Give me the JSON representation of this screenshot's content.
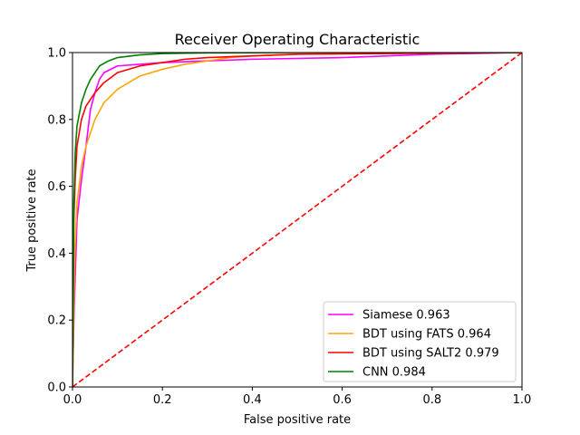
{
  "chart_data": {
    "type": "line",
    "title": "Receiver Operating Characteristic",
    "xlabel": "False positive rate",
    "ylabel": "True positive rate",
    "xlim": [
      0,
      1
    ],
    "ylim": [
      0,
      1
    ],
    "xticks": [
      "0.0",
      "0.2",
      "0.4",
      "0.6",
      "0.8",
      "1.0"
    ],
    "yticks": [
      "0.0",
      "0.2",
      "0.4",
      "0.6",
      "0.8",
      "1.0"
    ],
    "grid": false,
    "legend_position": "lower-right",
    "series": [
      {
        "name": "Siamese 0.963",
        "color": "#ff00ff",
        "x": [
          0,
          0.003,
          0.01,
          0.02,
          0.03,
          0.04,
          0.05,
          0.06,
          0.07,
          0.1,
          0.15,
          0.2,
          0.3,
          0.4,
          0.6,
          0.8,
          1.0
        ],
        "y": [
          0,
          0.2,
          0.5,
          0.62,
          0.72,
          0.83,
          0.88,
          0.92,
          0.94,
          0.96,
          0.965,
          0.97,
          0.975,
          0.98,
          0.985,
          0.995,
          1.0
        ]
      },
      {
        "name": "BDT using FATS 0.964",
        "color": "#ffa500",
        "x": [
          0,
          0.005,
          0.01,
          0.02,
          0.03,
          0.05,
          0.07,
          0.1,
          0.15,
          0.2,
          0.25,
          0.3,
          0.35,
          0.4,
          0.5,
          0.7,
          1.0
        ],
        "y": [
          0,
          0.4,
          0.55,
          0.66,
          0.72,
          0.8,
          0.85,
          0.89,
          0.93,
          0.95,
          0.965,
          0.975,
          0.985,
          0.99,
          0.995,
          0.998,
          1.0
        ]
      },
      {
        "name": "BDT using SALT2 0.979",
        "color": "#ff0000",
        "x": [
          0,
          0.003,
          0.006,
          0.01,
          0.02,
          0.03,
          0.05,
          0.07,
          0.1,
          0.15,
          0.2,
          0.25,
          0.3,
          0.4,
          0.5,
          1.0
        ],
        "y": [
          0,
          0.5,
          0.62,
          0.72,
          0.8,
          0.84,
          0.88,
          0.91,
          0.94,
          0.96,
          0.97,
          0.98,
          0.985,
          0.99,
          0.995,
          1.0
        ]
      },
      {
        "name": "CNN 0.984",
        "color": "#008000",
        "x": [
          0,
          0.003,
          0.006,
          0.01,
          0.02,
          0.03,
          0.04,
          0.05,
          0.06,
          0.08,
          0.1,
          0.15,
          0.2,
          0.3,
          0.5,
          1.0
        ],
        "y": [
          0,
          0.55,
          0.7,
          0.78,
          0.85,
          0.89,
          0.92,
          0.94,
          0.96,
          0.975,
          0.985,
          0.993,
          0.997,
          0.999,
          1.0,
          1.0
        ]
      },
      {
        "name": "",
        "color": "#ff0000",
        "dashed": true,
        "x": [
          0,
          1
        ],
        "y": [
          0,
          1
        ]
      }
    ]
  }
}
